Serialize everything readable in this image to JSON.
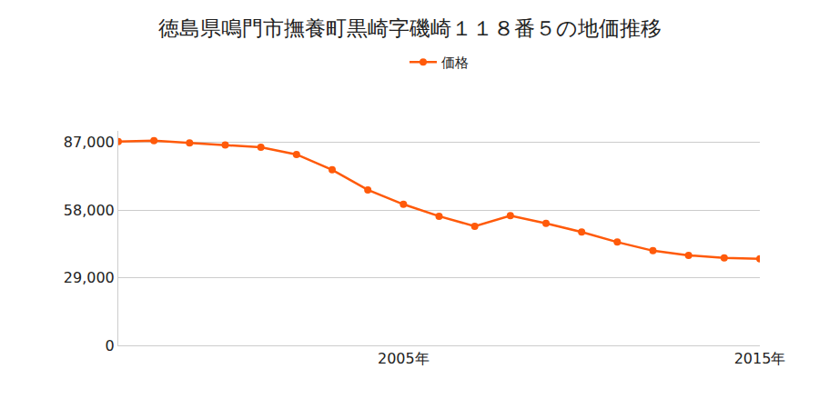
{
  "chart_data": {
    "type": "line",
    "title": "徳島県鳴門市撫養町黒崎字磯崎１１８番５の地価推移",
    "x": [
      1997,
      1998,
      1999,
      2000,
      2001,
      2002,
      2003,
      2004,
      2005,
      2006,
      2007,
      2008,
      2009,
      2010,
      2011,
      2012,
      2013,
      2014,
      2015
    ],
    "series": [
      {
        "name": "価格",
        "color": "#ff5a0a",
        "values": [
          87400,
          87800,
          86800,
          86000,
          85000,
          81900,
          75300,
          66700,
          60500,
          55400,
          51100,
          55600,
          52300,
          48600,
          44300,
          40600,
          38600,
          37500,
          37100
        ]
      }
    ],
    "xlim": [
      1997,
      2015
    ],
    "xticks": [
      {
        "value": 2005,
        "label": "2005年"
      },
      {
        "value": 2015,
        "label": "2015年"
      }
    ],
    "ylim": [
      0,
      92000
    ],
    "yticks": [
      0,
      {
        "value": 29000,
        "label": "29,000"
      },
      {
        "value": 58000,
        "label": "58,000"
      },
      {
        "value": 87000,
        "label": "87,000"
      }
    ],
    "grid": true,
    "legend": "top",
    "marker": "circle"
  }
}
